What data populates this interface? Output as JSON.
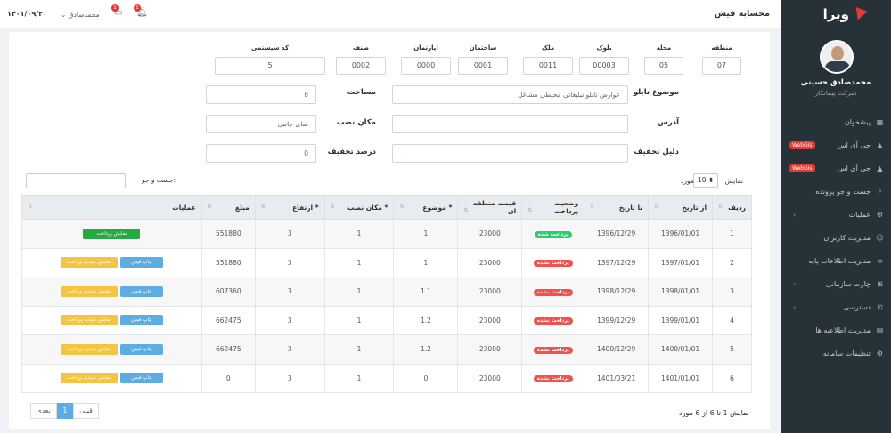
{
  "app": {
    "logo": "ویرا",
    "title": "محسابه فیش",
    "date": "۱۴۰۱/۰۹/۳۰",
    "user_top": "محمدصادق"
  },
  "user": {
    "name": "محمدصادق حسینی",
    "company": "شرکت پیمانکار"
  },
  "menu": [
    {
      "label": "پیشخوان",
      "icon": "dashboard-icon",
      "badge": "",
      "arrow": false
    },
    {
      "label": "جی آی اس",
      "icon": "map-icon",
      "badge": "WebGis",
      "arrow": false
    },
    {
      "label": "جی آی اس",
      "icon": "map-icon",
      "badge": "WebGis",
      "arrow": false
    },
    {
      "label": "جست و جو پرونده",
      "icon": "search-icon",
      "badge": "",
      "arrow": false
    },
    {
      "label": "عملیات",
      "icon": "gear-icon",
      "badge": "",
      "arrow": true
    },
    {
      "label": "مدیریت کاربران",
      "icon": "users-icon",
      "badge": "",
      "arrow": false
    },
    {
      "label": "مدیریت اطلاعات پایه",
      "icon": "database-icon",
      "badge": "",
      "arrow": false
    },
    {
      "label": "چارت سازمانی",
      "icon": "sitemap-icon",
      "badge": "",
      "arrow": true
    },
    {
      "label": "دسترسی",
      "icon": "lock-icon",
      "badge": "",
      "arrow": true
    },
    {
      "label": "مدیریت اطلاعیه ها",
      "icon": "id-card-icon",
      "badge": "",
      "arrow": false
    },
    {
      "label": "تنظیمات سامانه",
      "icon": "settings-icon",
      "badge": "",
      "arrow": false
    }
  ],
  "codes": [
    {
      "label": "منطقه",
      "value": "07"
    },
    {
      "label": "محله",
      "value": "05"
    },
    {
      "label": "بلوک",
      "value": "00003"
    },
    {
      "label": "ملک",
      "value": "0011"
    },
    {
      "label": "ساختمان",
      "value": "0001"
    },
    {
      "label": "اپارتمان",
      "value": "0000"
    },
    {
      "label": "صنف",
      "value": "0002"
    },
    {
      "label": "کد سیستمی",
      "value": "5"
    }
  ],
  "form": {
    "subject_label": "موضوع تابلو",
    "subject_value": "عوارض تابلو تبلیغاتی محیطی مشاغل",
    "area_label": "مساحت",
    "area_value": "8",
    "address_label": "آدرس",
    "address_value": "",
    "place_label": "مکان نصب",
    "place_value": "نمای جانبی",
    "reason_label": "دلیل تخفیف",
    "reason_value": "",
    "discount_label": "درصد تخفیف",
    "discount_value": "0"
  },
  "table_ctrl": {
    "show": "نمایش",
    "count": "10",
    "unit": "مورد",
    "search": "جست و جو:"
  },
  "headers": [
    "ردیف",
    "از تاریخ",
    "تا تاریخ",
    "وضعیت پرداخت",
    "قیمت منطقه ای",
    "* موضوع",
    "* مکان نصب",
    "* ارتفاع",
    "مبلغ",
    "عملیات"
  ],
  "rows": [
    {
      "n": "1",
      "from": "1396/01/01",
      "to": "1396/12/29",
      "status": "پرداخت شده",
      "paid": true,
      "price": "23000",
      "subject": "1",
      "place": "1",
      "height": "3",
      "amount": "551880"
    },
    {
      "n": "2",
      "from": "1397/01/01",
      "to": "1397/12/29",
      "status": "پرداخت نشده",
      "paid": false,
      "price": "23000",
      "subject": "1",
      "place": "1",
      "height": "3",
      "amount": "551880"
    },
    {
      "n": "3",
      "from": "1398/01/01",
      "to": "1398/12/29",
      "status": "پرداخت نشده",
      "paid": false,
      "price": "23000",
      "subject": "1.1",
      "place": "1",
      "height": "3",
      "amount": "607360"
    },
    {
      "n": "4",
      "from": "1399/01/01",
      "to": "1399/12/29",
      "status": "پرداخت نشده",
      "paid": false,
      "price": "23000",
      "subject": "1.2",
      "place": "1",
      "height": "3",
      "amount": "662475"
    },
    {
      "n": "5",
      "from": "1400/01/01",
      "to": "1400/12/29",
      "status": "پرداخت نشده",
      "paid": false,
      "price": "23000",
      "subject": "1.2",
      "place": "1",
      "height": "3",
      "amount": "662475"
    },
    {
      "n": "6",
      "from": "1401/01/01",
      "to": "1401/03/21",
      "status": "پرداخت نشده",
      "paid": false,
      "price": "23000",
      "subject": "0",
      "place": "1",
      "height": "3",
      "amount": "0"
    }
  ],
  "buttons": {
    "show_payment": "نمایش پرداخت",
    "print": "چاپ فیش",
    "confirm": "نمایش تاییدیه پرداخت"
  },
  "pagination": {
    "info": "نمایش 1 تا 6 از 6 مورد",
    "prev": "قبلی",
    "page": "1",
    "next": "بعدی"
  }
}
